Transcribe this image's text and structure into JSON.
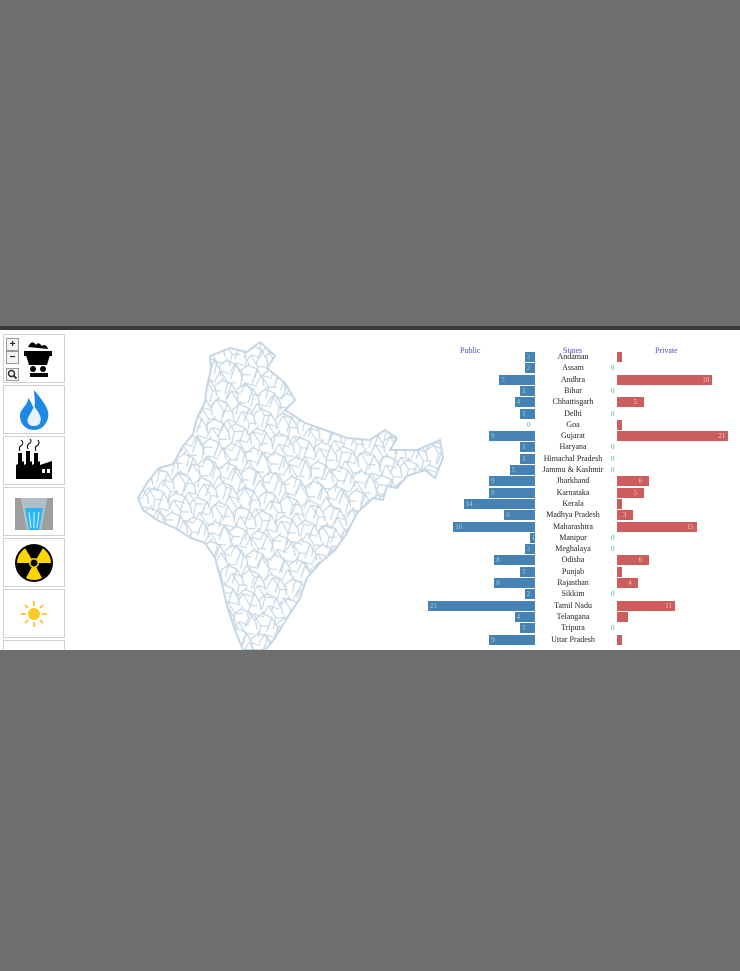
{
  "zoom": {
    "in_label": "+",
    "out_label": "−"
  },
  "sidebar": {
    "tiles": [
      {
        "name": "coal-cart-icon"
      },
      {
        "name": "gas-flame-icon"
      },
      {
        "name": "factory-icon"
      },
      {
        "name": "hydro-dam-icon"
      },
      {
        "name": "nuclear-icon"
      },
      {
        "name": "solar-sun-icon"
      }
    ]
  },
  "chart": {
    "public_header": "Public",
    "states_header": "States",
    "private_header": "Private",
    "colors": {
      "public": "#4682b4",
      "private": "#cd5c5c",
      "zero": "#3cb371"
    },
    "rows": [
      {
        "state": "Andaman",
        "public": 2,
        "private": 1
      },
      {
        "state": "Assam",
        "public": 2,
        "private": 0
      },
      {
        "state": "Andhra",
        "public": 7,
        "private": 18
      },
      {
        "state": "Bihar",
        "public": 3,
        "private": 0
      },
      {
        "state": "Chhattisgarh",
        "public": 4,
        "private": 5
      },
      {
        "state": "Delhi",
        "public": 3,
        "private": 0
      },
      {
        "state": "Goa",
        "public": 0,
        "private": 1
      },
      {
        "state": "Gujarat",
        "public": 9,
        "private": 21
      },
      {
        "state": "Haryana",
        "public": 3,
        "private": 0
      },
      {
        "state": "Himachal Pradesh",
        "public": 3,
        "private": 0
      },
      {
        "state": "Jammu & Kashmir",
        "public": 5,
        "private": 0
      },
      {
        "state": "Jharkhand",
        "public": 9,
        "private": 6
      },
      {
        "state": "Karnataka",
        "public": 9,
        "private": 5
      },
      {
        "state": "Kerala",
        "public": 14,
        "private": 1
      },
      {
        "state": "Madhya Pradesh",
        "public": 6,
        "private": 3
      },
      {
        "state": "Maharashtra",
        "public": 16,
        "private": 15
      },
      {
        "state": "Manipur",
        "public": 1,
        "private": 0
      },
      {
        "state": "Meghalaya",
        "public": 2,
        "private": 0
      },
      {
        "state": "Odisha",
        "public": 8,
        "private": 6
      },
      {
        "state": "Punjab",
        "public": 3,
        "private": 1
      },
      {
        "state": "Rajasthan",
        "public": 8,
        "private": 4
      },
      {
        "state": "Sikkim",
        "public": 2,
        "private": 0
      },
      {
        "state": "Tamil Nadu",
        "public": 21,
        "private": 11
      },
      {
        "state": "Telangana",
        "public": 4,
        "private": 2
      },
      {
        "state": "Tripura",
        "public": 3,
        "private": 0
      },
      {
        "state": "Uttar Pradesh",
        "public": 9,
        "private": 1
      }
    ]
  }
}
